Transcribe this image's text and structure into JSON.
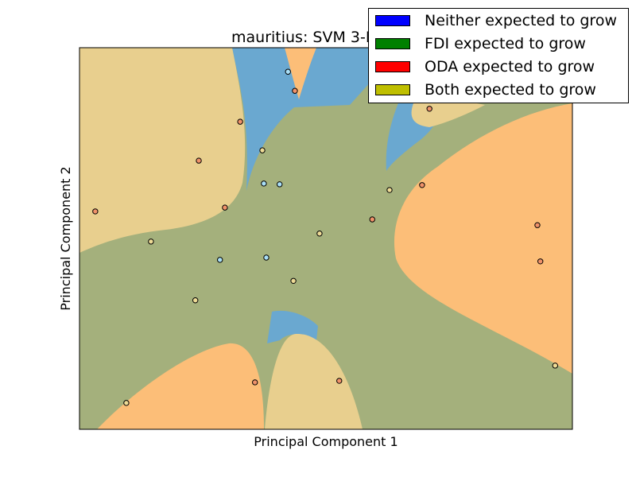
{
  "chart_data": {
    "type": "scatter",
    "title": "mauritius: SVM 3-Degree",
    "xlabel": "Principal Component 1",
    "ylabel": "Principal Component 2",
    "xlim": [
      0,
      100
    ],
    "ylim": [
      0,
      100
    ],
    "grid": false,
    "legend_position": "top-right",
    "classes": [
      {
        "name": "Neither expected to grow",
        "color": "#0000ff",
        "region_color": "#6aa8d0"
      },
      {
        "name": "FDI expected to grow",
        "color": "#008000",
        "region_color": "#a4b07c"
      },
      {
        "name": "ODA expected to grow",
        "color": "#ff0000",
        "region_color": "#fcbe78"
      },
      {
        "name": "Both expected to grow",
        "color": "#bfbf00",
        "region_color": "#e8cf8e"
      }
    ],
    "points": [
      {
        "x": 42.3,
        "y": 93.7,
        "cls": "Neither expected to grow"
      },
      {
        "x": 43.7,
        "y": 88.7,
        "cls": "ODA expected to grow"
      },
      {
        "x": 32.6,
        "y": 80.6,
        "cls": "ODA expected to grow"
      },
      {
        "x": 37.1,
        "y": 73.1,
        "cls": "Both expected to grow"
      },
      {
        "x": 24.2,
        "y": 70.4,
        "cls": "ODA expected to grow"
      },
      {
        "x": 37.4,
        "y": 64.4,
        "cls": "Neither expected to grow"
      },
      {
        "x": 40.6,
        "y": 64.2,
        "cls": "Neither expected to grow"
      },
      {
        "x": 3.2,
        "y": 57.1,
        "cls": "ODA expected to grow"
      },
      {
        "x": 29.5,
        "y": 58.1,
        "cls": "ODA expected to grow"
      },
      {
        "x": 14.5,
        "y": 49.2,
        "cls": "Both expected to grow"
      },
      {
        "x": 48.7,
        "y": 51.3,
        "cls": "Both expected to grow"
      },
      {
        "x": 28.5,
        "y": 44.4,
        "cls": "Neither expected to grow"
      },
      {
        "x": 37.9,
        "y": 45.0,
        "cls": "Neither expected to grow"
      },
      {
        "x": 43.4,
        "y": 38.9,
        "cls": "Both expected to grow"
      },
      {
        "x": 23.5,
        "y": 33.8,
        "cls": "Both expected to grow"
      },
      {
        "x": 59.4,
        "y": 55.0,
        "cls": "ODA expected to grow"
      },
      {
        "x": 62.9,
        "y": 62.7,
        "cls": "Both expected to grow"
      },
      {
        "x": 69.5,
        "y": 64.0,
        "cls": "ODA expected to grow"
      },
      {
        "x": 71.0,
        "y": 84.0,
        "cls": "ODA expected to grow"
      },
      {
        "x": 92.9,
        "y": 53.5,
        "cls": "ODA expected to grow"
      },
      {
        "x": 93.5,
        "y": 44.0,
        "cls": "ODA expected to grow"
      },
      {
        "x": 96.5,
        "y": 16.7,
        "cls": "Both expected to grow"
      },
      {
        "x": 52.7,
        "y": 12.7,
        "cls": "ODA expected to grow"
      },
      {
        "x": 35.6,
        "y": 12.3,
        "cls": "ODA expected to grow"
      },
      {
        "x": 9.5,
        "y": 6.9,
        "cls": "Both expected to grow"
      }
    ]
  },
  "colors": {
    "point_neither": "#a9dff7",
    "point_fdi": "#a4b07c",
    "point_oda": "#f0926a",
    "point_both": "#eedb96"
  }
}
